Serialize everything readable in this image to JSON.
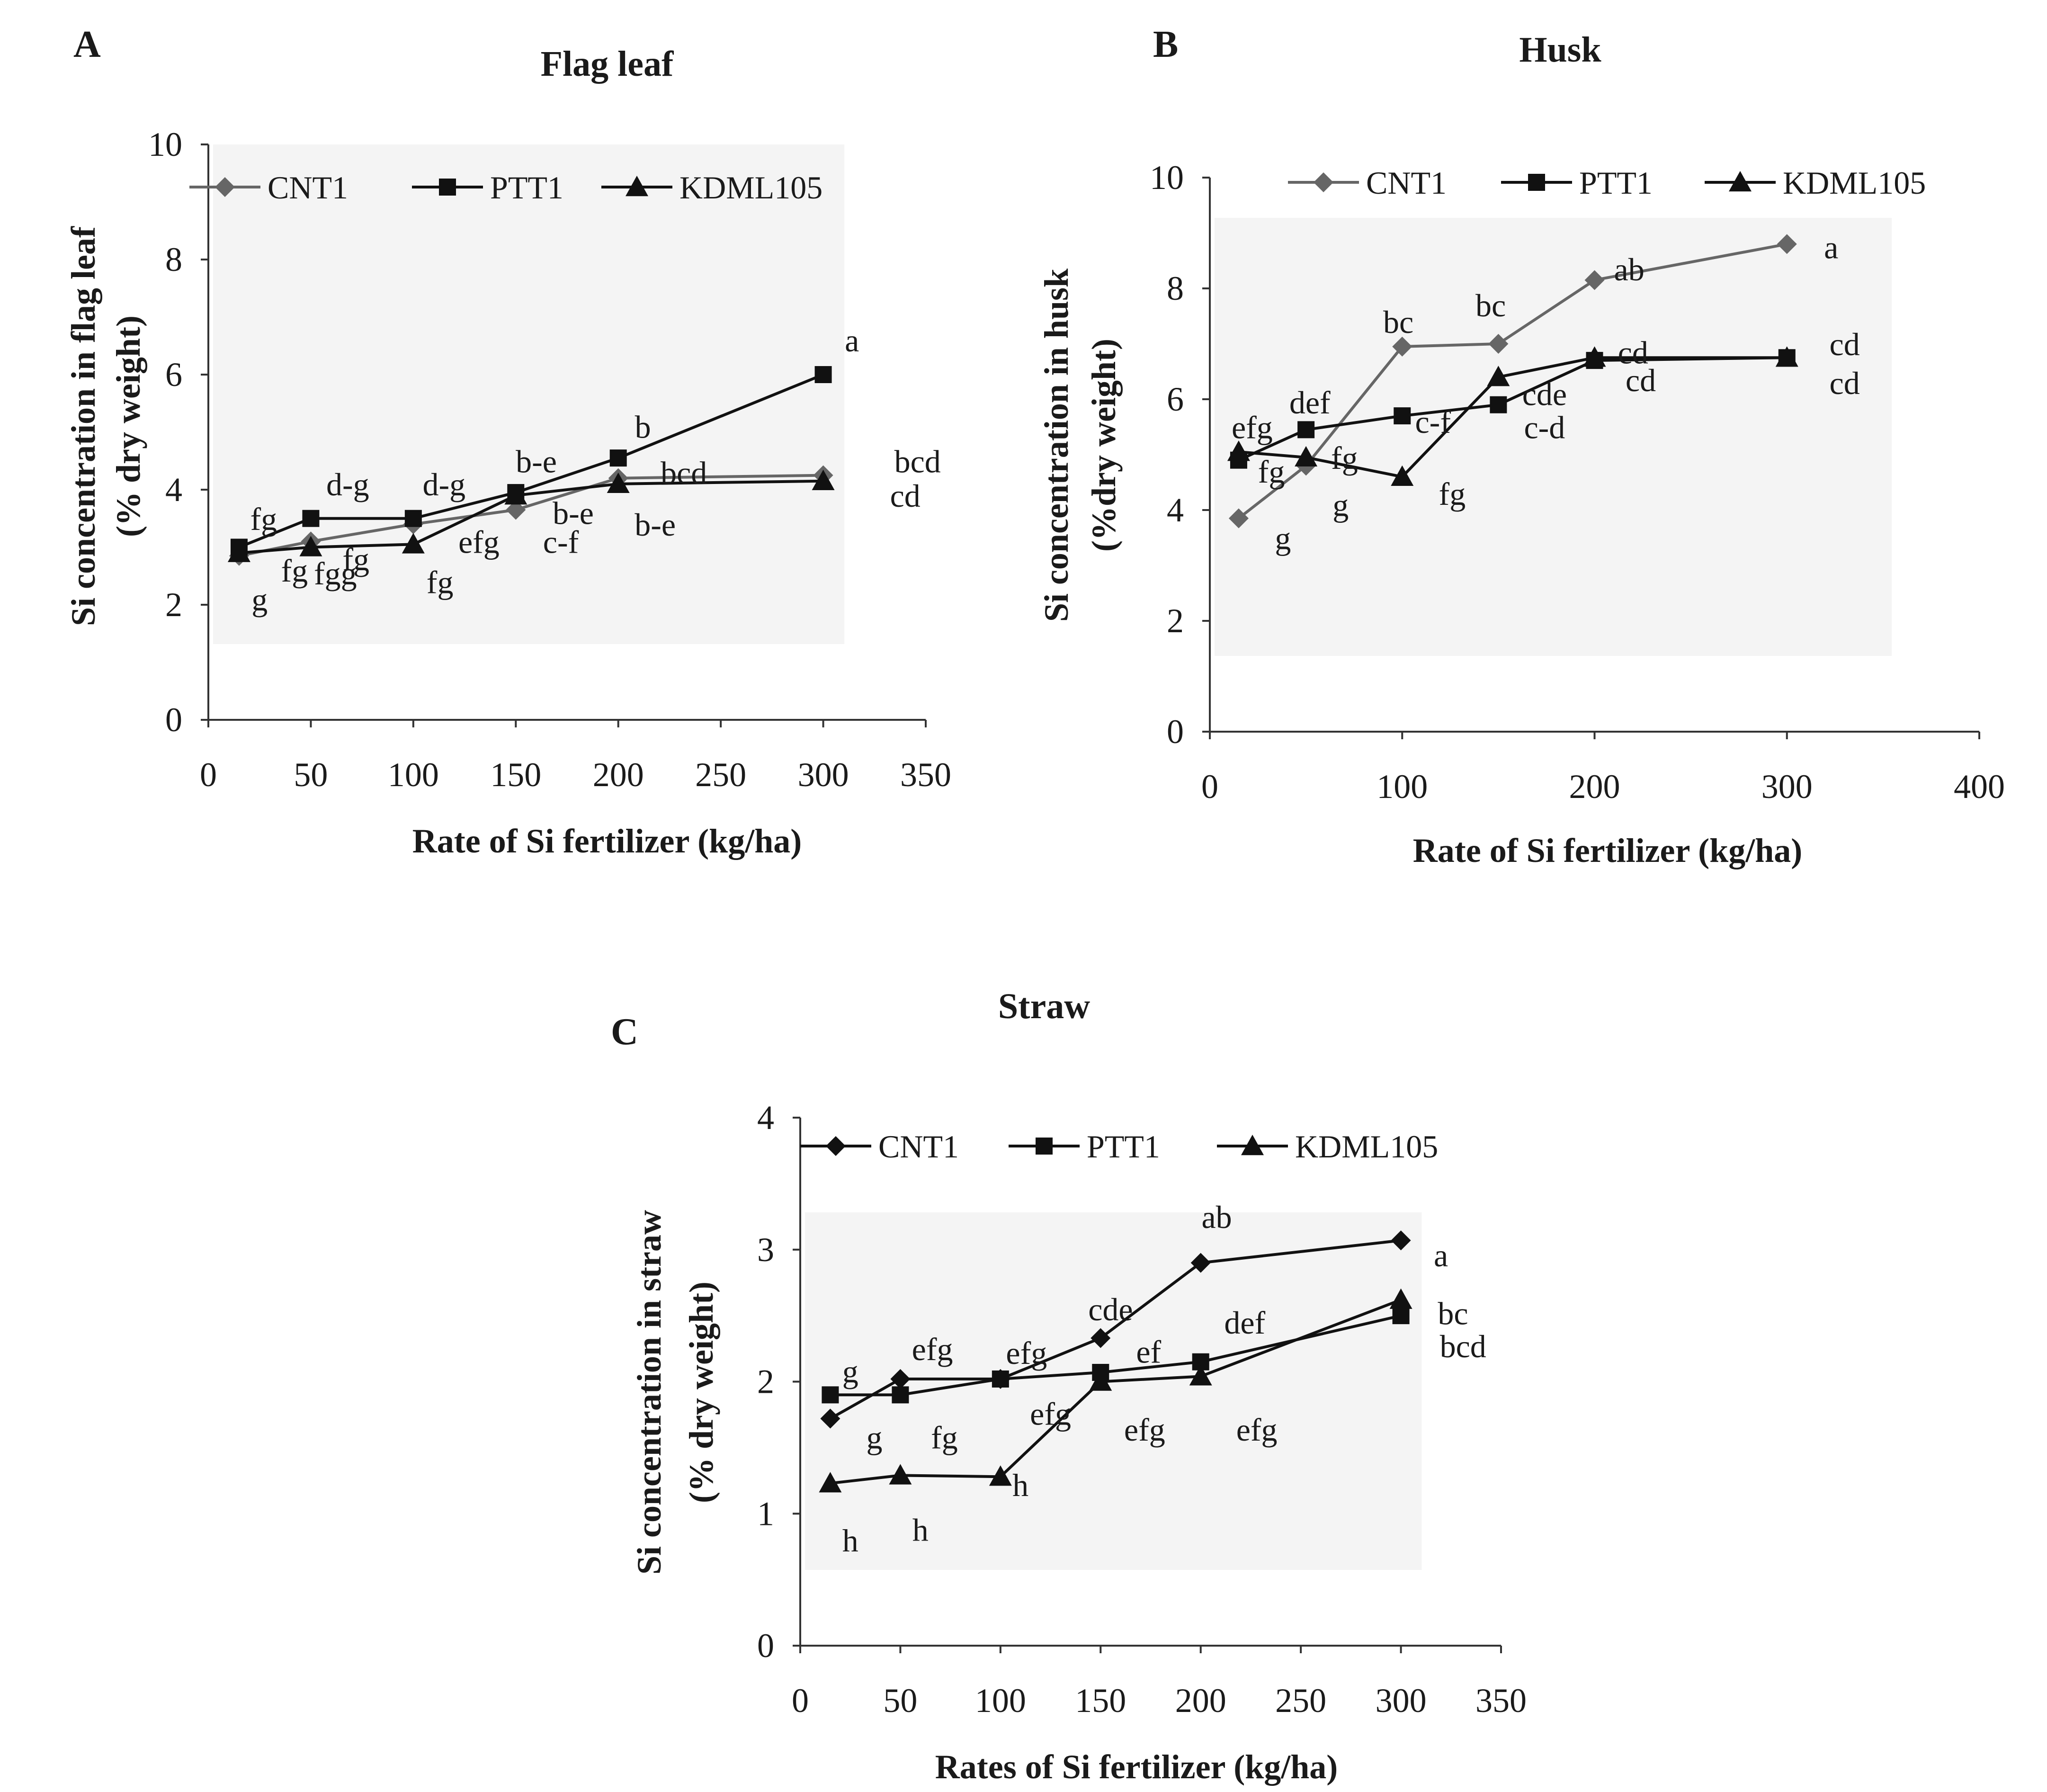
{
  "chart_data": [
    {
      "type": "line",
      "panel": "A",
      "title": "Flag leaf",
      "xlabel": "Rate of Si fertilizer (kg/ha)",
      "ylabel_line1": "Si concentration in flag leaf",
      "ylabel_line2": "(% dry weight)",
      "xlim": [
        0,
        350
      ],
      "ylim": [
        0,
        10
      ],
      "xticks": [
        0,
        50,
        100,
        150,
        200,
        250,
        300,
        350
      ],
      "yticks": [
        0,
        2,
        4,
        6,
        8,
        10
      ],
      "x": [
        15,
        50,
        100,
        150,
        200,
        300
      ],
      "legend_position": "top-left",
      "series": [
        {
          "name": "CNT1",
          "marker": "diamond",
          "color": "#666666",
          "values": [
            2.85,
            3.1,
            3.4,
            3.65,
            4.2,
            4.25
          ]
        },
        {
          "name": "PTT1",
          "marker": "square",
          "color": "#111111",
          "values": [
            3.0,
            3.5,
            3.5,
            3.95,
            4.55,
            6.0
          ]
        },
        {
          "name": "KDML105",
          "marker": "triangle",
          "color": "#111111",
          "values": [
            2.9,
            3.0,
            3.05,
            3.9,
            4.1,
            4.15
          ]
        }
      ],
      "annotations": [
        {
          "text": "fg",
          "x": 27,
          "y": 3.5
        },
        {
          "text": "g",
          "x": 25,
          "y": 2.1
        },
        {
          "text": "fg",
          "x": 42,
          "y": 2.6
        },
        {
          "text": "fgg",
          "x": 62,
          "y": 2.55
        },
        {
          "text": "fg",
          "x": 72,
          "y": 2.8
        },
        {
          "text": "d-g",
          "x": 68,
          "y": 4.1
        },
        {
          "text": "d-g",
          "x": 115,
          "y": 4.1
        },
        {
          "text": "fg",
          "x": 113,
          "y": 2.4
        },
        {
          "text": "efg",
          "x": 132,
          "y": 3.1
        },
        {
          "text": "b-e",
          "x": 160,
          "y": 4.5
        },
        {
          "text": "b-e",
          "x": 178,
          "y": 3.6
        },
        {
          "text": "c-f",
          "x": 172,
          "y": 3.1
        },
        {
          "text": "b",
          "x": 212,
          "y": 5.1
        },
        {
          "text": "bcd",
          "x": 232,
          "y": 4.3
        },
        {
          "text": "b-e",
          "x": 218,
          "y": 3.4
        },
        {
          "text": "a",
          "x": 314,
          "y": 6.6
        },
        {
          "text": "bcd",
          "x": 346,
          "y": 4.5
        },
        {
          "text": "cd",
          "x": 340,
          "y": 3.9
        }
      ]
    },
    {
      "type": "line",
      "panel": "B",
      "title": "Husk",
      "xlabel": "Rate of Si fertilizer (kg/ha)",
      "ylabel_line1": "Si concentration in husk",
      "ylabel_line2": "(%dry weight)",
      "xlim": [
        0,
        400
      ],
      "ylim": [
        0,
        10
      ],
      "xticks": [
        0,
        100,
        200,
        300,
        400
      ],
      "yticks": [
        0,
        2,
        4,
        6,
        8,
        10
      ],
      "x": [
        15,
        50,
        100,
        150,
        200,
        300
      ],
      "legend_position": "top",
      "series": [
        {
          "name": "CNT1",
          "marker": "diamond",
          "color": "#666666",
          "values": [
            3.85,
            4.8,
            6.95,
            7.0,
            8.15,
            8.8
          ]
        },
        {
          "name": "PTT1",
          "marker": "square",
          "color": "#111111",
          "values": [
            4.9,
            5.45,
            5.7,
            5.9,
            6.7,
            6.75
          ]
        },
        {
          "name": "KDML105",
          "marker": "triangle",
          "color": "#111111",
          "values": [
            5.05,
            4.95,
            4.6,
            6.4,
            6.75,
            6.75
          ]
        }
      ],
      "annotations": [
        {
          "text": "efg",
          "x": 22,
          "y": 5.5
        },
        {
          "text": "fg",
          "x": 32,
          "y": 4.7
        },
        {
          "text": "g",
          "x": 38,
          "y": 3.5
        },
        {
          "text": "def",
          "x": 52,
          "y": 5.95
        },
        {
          "text": "fg",
          "x": 70,
          "y": 4.95
        },
        {
          "text": "g",
          "x": 68,
          "y": 4.1
        },
        {
          "text": "bc",
          "x": 98,
          "y": 7.4
        },
        {
          "text": "c-f",
          "x": 116,
          "y": 5.6
        },
        {
          "text": "fg",
          "x": 126,
          "y": 4.3
        },
        {
          "text": "bc",
          "x": 146,
          "y": 7.7
        },
        {
          "text": "cde",
          "x": 174,
          "y": 6.1
        },
        {
          "text": "c-d",
          "x": 174,
          "y": 5.5
        },
        {
          "text": "ab",
          "x": 218,
          "y": 8.35
        },
        {
          "text": "cd",
          "x": 220,
          "y": 6.85
        },
        {
          "text": "cd",
          "x": 224,
          "y": 6.35
        },
        {
          "text": "a",
          "x": 323,
          "y": 8.75
        },
        {
          "text": "cd",
          "x": 330,
          "y": 7.0
        },
        {
          "text": "cd",
          "x": 330,
          "y": 6.3
        }
      ]
    },
    {
      "type": "line",
      "panel": "C",
      "title": "Straw",
      "xlabel": "Rates of Si fertilizer (kg/ha)",
      "ylabel_line1": "Si concentration in straw",
      "ylabel_line2": "(% dry weight)",
      "xlim": [
        0,
        350
      ],
      "ylim": [
        0,
        4
      ],
      "xticks": [
        0,
        50,
        100,
        150,
        200,
        250,
        300,
        350
      ],
      "yticks": [
        0,
        1,
        2,
        3,
        4
      ],
      "x": [
        15,
        50,
        100,
        150,
        200,
        300
      ],
      "legend_position": "top-left",
      "series": [
        {
          "name": "CNT1",
          "marker": "diamond",
          "color": "#111111",
          "values": [
            1.72,
            2.02,
            2.02,
            2.33,
            2.9,
            3.07
          ]
        },
        {
          "name": "PTT1",
          "marker": "square",
          "color": "#111111",
          "values": [
            1.9,
            1.9,
            2.02,
            2.07,
            2.15,
            2.5
          ]
        },
        {
          "name": "KDML105",
          "marker": "triangle",
          "color": "#111111",
          "values": [
            1.23,
            1.29,
            1.28,
            2.0,
            2.04,
            2.62
          ]
        }
      ],
      "annotations": [
        {
          "text": "g",
          "x": 25,
          "y": 2.08
        },
        {
          "text": "g",
          "x": 37,
          "y": 1.58
        },
        {
          "text": "h",
          "x": 25,
          "y": 0.8
        },
        {
          "text": "efg",
          "x": 66,
          "y": 2.25
        },
        {
          "text": "fg",
          "x": 72,
          "y": 1.58
        },
        {
          "text": "h",
          "x": 60,
          "y": 0.88
        },
        {
          "text": "efg",
          "x": 113,
          "y": 2.22
        },
        {
          "text": "efg",
          "x": 125,
          "y": 1.76
        },
        {
          "text": "h",
          "x": 110,
          "y": 1.22
        },
        {
          "text": "cde",
          "x": 155,
          "y": 2.55
        },
        {
          "text": "ef",
          "x": 174,
          "y": 2.23
        },
        {
          "text": "efg",
          "x": 172,
          "y": 1.64
        },
        {
          "text": "ab",
          "x": 208,
          "y": 3.25
        },
        {
          "text": "def",
          "x": 222,
          "y": 2.45
        },
        {
          "text": "efg",
          "x": 228,
          "y": 1.64
        },
        {
          "text": "a",
          "x": 320,
          "y": 2.96
        },
        {
          "text": "bc",
          "x": 326,
          "y": 2.52
        },
        {
          "text": "bcd",
          "x": 331,
          "y": 2.27
        }
      ]
    }
  ]
}
